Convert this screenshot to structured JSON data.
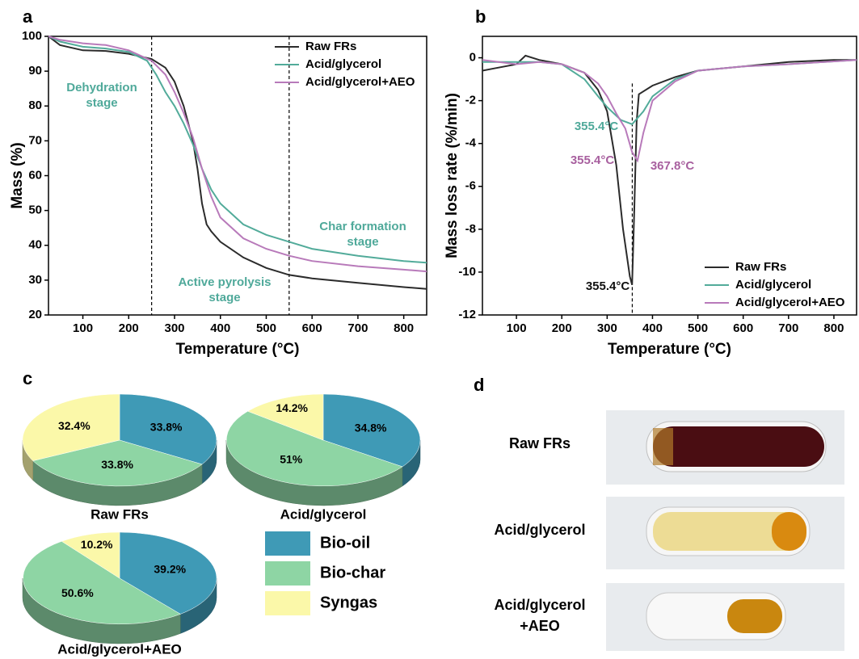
{
  "chart_data": [
    {
      "type": "line",
      "panel_label": "a",
      "x_label": "Temperature (°C)",
      "y_label": "Mass (%)",
      "xlim": [
        25,
        850
      ],
      "xticks": [
        100,
        200,
        300,
        400,
        500,
        600,
        700,
        800
      ],
      "ylim": [
        20,
        100
      ],
      "yticks": [
        20,
        30,
        40,
        50,
        60,
        70,
        80,
        90,
        100
      ],
      "vlines": [
        250,
        550
      ],
      "legend": "upper right",
      "annotations": [
        {
          "lines": [
            "Dehydration",
            "stage"
          ],
          "color": "#4fa99a"
        },
        {
          "lines": [
            "Active pyrolysis",
            "stage"
          ],
          "color": "#4fa99a"
        },
        {
          "lines": [
            "Char formation",
            "stage"
          ],
          "color": "#4fa99a"
        }
      ],
      "series": [
        {
          "name": "Raw FRs",
          "color": "#2b2b2b",
          "x": [
            25,
            50,
            100,
            150,
            200,
            250,
            280,
            300,
            320,
            340,
            350,
            360,
            370,
            380,
            400,
            450,
            500,
            550,
            600,
            700,
            800,
            850
          ],
          "values": [
            100,
            97.5,
            96,
            95.8,
            95,
            93.5,
            91,
            87,
            80,
            70,
            62,
            52,
            46,
            44,
            41,
            36.5,
            33.5,
            31.5,
            30.5,
            29.2,
            28,
            27.5
          ]
        },
        {
          "name": "Acid/glycerol",
          "color": "#52ab9a",
          "x": [
            25,
            50,
            100,
            150,
            200,
            240,
            260,
            280,
            300,
            320,
            340,
            360,
            380,
            400,
            450,
            500,
            550,
            600,
            700,
            800,
            850
          ],
          "values": [
            100,
            98.5,
            97,
            96.5,
            95.5,
            93,
            89,
            84,
            80,
            75,
            69,
            62,
            56,
            52,
            46,
            43,
            41,
            39,
            37,
            35.5,
            35
          ]
        },
        {
          "name": "Acid/glycerol+AEO",
          "color": "#b87aba",
          "x": [
            25,
            50,
            100,
            150,
            200,
            250,
            280,
            300,
            320,
            340,
            360,
            380,
            400,
            450,
            500,
            550,
            600,
            700,
            800,
            850
          ],
          "values": [
            100,
            99,
            98,
            97.5,
            96,
            93,
            89,
            84,
            78,
            71,
            62,
            54,
            48,
            42,
            39,
            37,
            35.5,
            34,
            33,
            32.5
          ]
        }
      ]
    },
    {
      "type": "line",
      "panel_label": "b",
      "x_label": "Temperature (°C)",
      "y_label": "Mass loss rate (%/min)",
      "xlim": [
        25,
        850
      ],
      "xticks": [
        100,
        200,
        300,
        400,
        500,
        600,
        700,
        800
      ],
      "ylim": [
        -12,
        1
      ],
      "yticks": [
        -12,
        -10,
        -8,
        -6,
        -4,
        -2,
        0
      ],
      "vlines": [
        355.4
      ],
      "legend": "lower right",
      "annotations": [
        {
          "lines": [
            "355.4°C"
          ],
          "color": "#4fa99a"
        },
        {
          "lines": [
            "355.4°C"
          ],
          "color": "#a8609f"
        },
        {
          "lines": [
            "367.8°C"
          ],
          "color": "#a8609f"
        },
        {
          "lines": [
            "355.4°C"
          ],
          "color": "#111111"
        }
      ],
      "series": [
        {
          "name": "Raw FRs",
          "color": "#2b2b2b",
          "x": [
            25,
            50,
            100,
            120,
            150,
            200,
            250,
            280,
            300,
            320,
            335,
            350,
            355,
            360,
            365,
            370,
            400,
            450,
            500,
            600,
            700,
            800,
            850
          ],
          "values": [
            -0.6,
            -0.5,
            -0.3,
            0.1,
            -0.1,
            -0.3,
            -0.7,
            -1.5,
            -2.5,
            -5,
            -8,
            -10.2,
            -10.6,
            -7,
            -3,
            -1.7,
            -1.3,
            -0.9,
            -0.6,
            -0.4,
            -0.2,
            -0.1,
            -0.1
          ]
        },
        {
          "name": "Acid/glycerol",
          "color": "#52ab9a",
          "x": [
            25,
            100,
            150,
            200,
            250,
            280,
            300,
            330,
            355,
            380,
            400,
            450,
            500,
            600,
            700,
            850
          ],
          "values": [
            -0.2,
            -0.2,
            -0.2,
            -0.3,
            -1,
            -1.8,
            -2.3,
            -2.9,
            -3.1,
            -2.5,
            -1.8,
            -1,
            -0.6,
            -0.4,
            -0.3,
            -0.1
          ]
        },
        {
          "name": "Acid/glycerol+AEO",
          "color": "#b87aba",
          "x": [
            25,
            100,
            150,
            200,
            250,
            280,
            300,
            320,
            340,
            355,
            367,
            380,
            400,
            450,
            500,
            600,
            700,
            850
          ],
          "values": [
            -0.1,
            -0.3,
            -0.2,
            -0.3,
            -0.7,
            -1.2,
            -1.8,
            -2.6,
            -3.3,
            -4.4,
            -4.8,
            -3.5,
            -2,
            -1.1,
            -0.6,
            -0.4,
            -0.3,
            -0.1
          ]
        }
      ]
    },
    {
      "type": "pie",
      "panel_label": "c",
      "categories": [
        "Bio-oil",
        "Bio-char",
        "Syngas"
      ],
      "colors": [
        "#3f9ab6",
        "#8ed5a4",
        "#fbf8a9"
      ],
      "series": [
        {
          "name": "Raw FRs",
          "values": [
            33.8,
            33.8,
            32.4
          ],
          "value_labels": [
            "33.8%",
            "33.8%",
            "32.4%"
          ]
        },
        {
          "name": "Acid/glycerol",
          "values": [
            34.8,
            51,
            14.2
          ],
          "value_labels": [
            "34.8%",
            "51%",
            "14.2%"
          ]
        },
        {
          "name": "Acid/glycerol+AEO",
          "values": [
            39.2,
            50.6,
            10.2
          ],
          "value_labels": [
            "39.2%",
            "50.6%",
            "10.2%"
          ]
        }
      ]
    }
  ],
  "photos": {
    "panel_label": "d",
    "labels": [
      [
        "Raw FRs"
      ],
      [
        "Acid/glycerol"
      ],
      [
        "Acid/glycerol",
        "+AEO"
      ]
    ]
  }
}
